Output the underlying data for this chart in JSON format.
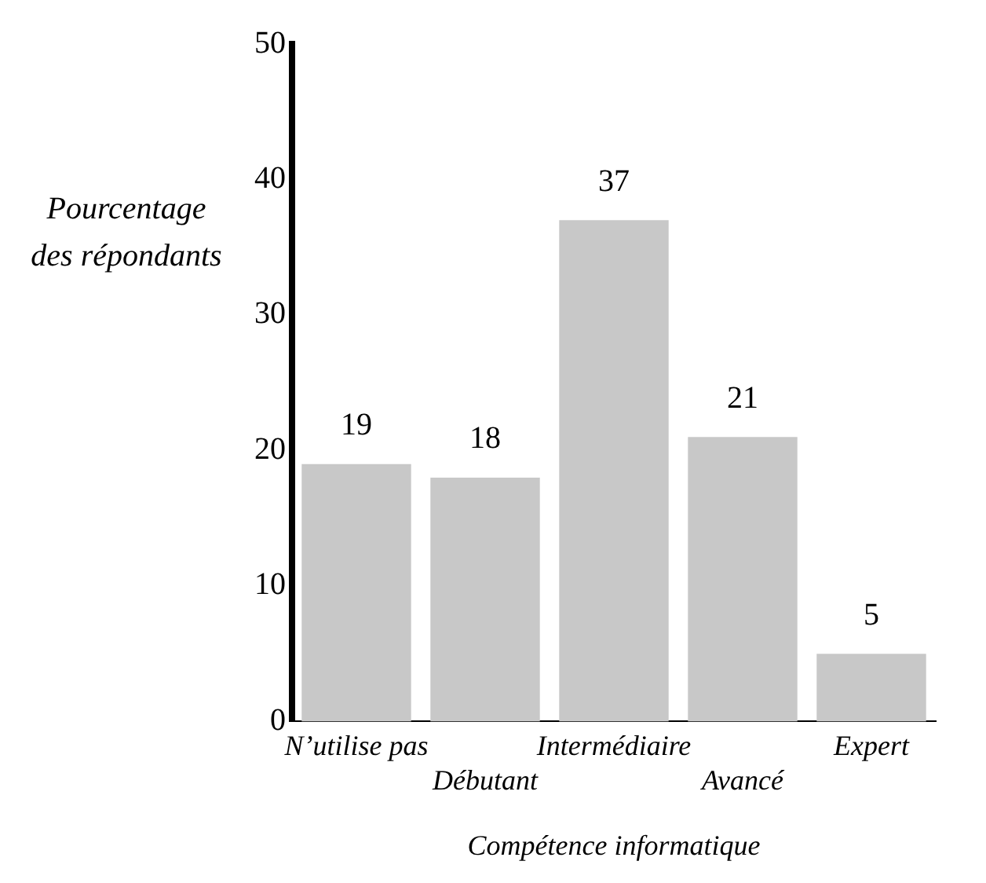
{
  "chart_data": {
    "type": "bar",
    "xlabel": "Compétence informatique",
    "ylabel": "Pourcentage des répondants",
    "categories": [
      "N’utilise pas",
      "Débutant",
      "Intermédiaire",
      "Avancé",
      "Expert"
    ],
    "values": [
      19,
      18,
      37,
      21,
      5
    ],
    "color": "#c8c8c8",
    "ylim": [
      0,
      50
    ],
    "yticks": [
      0,
      10,
      20,
      30,
      40,
      50
    ],
    "grid": false,
    "legend": false,
    "data_labels": true
  }
}
